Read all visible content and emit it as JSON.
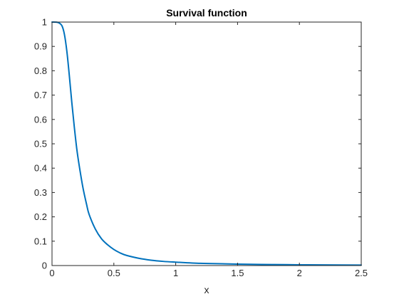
{
  "chart_data": {
    "type": "line",
    "title": "Survival function",
    "xlabel": "x",
    "ylabel": "",
    "xlim": [
      0,
      2.5
    ],
    "ylim": [
      0,
      1
    ],
    "xticks": [
      0,
      0.5,
      1,
      1.5,
      2,
      2.5
    ],
    "xtick_labels": [
      "0",
      "0.5",
      "1",
      "1.5",
      "2",
      "2.5"
    ],
    "yticks": [
      0,
      0.1,
      0.2,
      0.3,
      0.4,
      0.5,
      0.6,
      0.7,
      0.8,
      0.9,
      1
    ],
    "ytick_labels": [
      "0",
      "0.1",
      "0.2",
      "0.3",
      "0.4",
      "0.5",
      "0.6",
      "0.7",
      "0.8",
      "0.9",
      "1"
    ],
    "grid": false,
    "box": true,
    "series": [
      {
        "color": "#0072bd",
        "x": [
          0,
          0.05,
          0.08,
          0.1,
          0.12,
          0.14,
          0.16,
          0.18,
          0.2,
          0.22,
          0.25,
          0.28,
          0.3,
          0.35,
          0.4,
          0.45,
          0.5,
          0.55,
          0.6,
          0.7,
          0.8,
          0.9,
          1.0,
          1.2,
          1.4,
          1.6,
          1.8,
          2.0,
          2.2,
          2.5
        ],
        "y": [
          1.0,
          0.998,
          0.985,
          0.95,
          0.88,
          0.78,
          0.67,
          0.57,
          0.48,
          0.41,
          0.32,
          0.25,
          0.21,
          0.15,
          0.11,
          0.085,
          0.066,
          0.052,
          0.042,
          0.03,
          0.022,
          0.017,
          0.014,
          0.009,
          0.007,
          0.005,
          0.004,
          0.003,
          0.0025,
          0.002
        ]
      }
    ]
  }
}
